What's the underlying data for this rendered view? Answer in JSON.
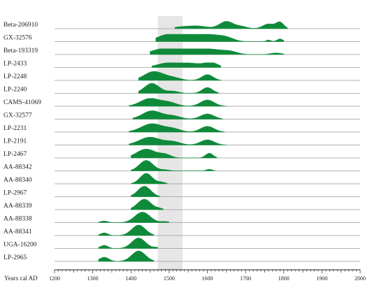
{
  "chart_data": {
    "type": "area",
    "title": "",
    "xlabel": "Years cal AD",
    "ylabel": "",
    "xlim": [
      1200,
      2000
    ],
    "x_ticks": [
      1200,
      1300,
      1400,
      1500,
      1600,
      1700,
      1800,
      1900,
      2000
    ],
    "x_tick_labels": [
      "1200",
      "1300",
      "1400",
      "1500",
      "1600",
      "1700",
      "1800",
      "1900",
      "2000"
    ],
    "highlight_band": [
      1470,
      1535
    ],
    "colors": {
      "fill": "#0f8a3a",
      "band": "#e6e6e6",
      "axis": "#231f20",
      "rule": "#999999"
    },
    "series": [
      {
        "name": "Beta-206910",
        "peaks": [
          {
            "x": 1530,
            "w": 22,
            "h": 0.15
          },
          {
            "x": 1575,
            "w": 25,
            "h": 0.25
          },
          {
            "x": 1650,
            "w": 18,
            "h": 0.7
          },
          {
            "x": 1690,
            "w": 15,
            "h": 0.2
          },
          {
            "x": 1760,
            "w": 15,
            "h": 0.45
          },
          {
            "x": 1790,
            "w": 10,
            "h": 0.6
          }
        ],
        "range": [
          1515,
          1810
        ]
      },
      {
        "name": "GX-32576",
        "peaks": [
          {
            "x": 1500,
            "w": 30,
            "h": 0.7
          },
          {
            "x": 1560,
            "w": 25,
            "h": 0.65
          },
          {
            "x": 1610,
            "w": 25,
            "h": 0.55
          },
          {
            "x": 1650,
            "w": 20,
            "h": 0.35
          },
          {
            "x": 1760,
            "w": 6,
            "h": 0.15
          },
          {
            "x": 1790,
            "w": 8,
            "h": 0.25
          }
        ],
        "range": [
          1465,
          1800
        ]
      },
      {
        "name": "Beta-193319",
        "peaks": [
          {
            "x": 1480,
            "w": 30,
            "h": 0.45
          },
          {
            "x": 1540,
            "w": 35,
            "h": 0.55
          },
          {
            "x": 1610,
            "w": 30,
            "h": 0.45
          },
          {
            "x": 1660,
            "w": 20,
            "h": 0.25
          },
          {
            "x": 1780,
            "w": 15,
            "h": 0.15
          }
        ],
        "range": [
          1450,
          1800
        ]
      },
      {
        "name": "LP-2433",
        "peaks": [
          {
            "x": 1500,
            "w": 30,
            "h": 0.45
          },
          {
            "x": 1560,
            "w": 25,
            "h": 0.35
          },
          {
            "x": 1610,
            "w": 18,
            "h": 0.45
          }
        ],
        "range": [
          1455,
          1635
        ]
      },
      {
        "name": "LP-2248",
        "peaks": [
          {
            "x": 1460,
            "w": 25,
            "h": 0.85
          },
          {
            "x": 1510,
            "w": 20,
            "h": 0.25
          },
          {
            "x": 1600,
            "w": 15,
            "h": 0.55
          }
        ],
        "range": [
          1420,
          1635
        ]
      },
      {
        "name": "LP-2240",
        "peaks": [
          {
            "x": 1455,
            "w": 20,
            "h": 0.95
          },
          {
            "x": 1510,
            "w": 15,
            "h": 0.2
          },
          {
            "x": 1600,
            "w": 14,
            "h": 0.55
          }
        ],
        "range": [
          1420,
          1630
        ]
      },
      {
        "name": "CAMS-41069",
        "peaks": [
          {
            "x": 1450,
            "w": 25,
            "h": 0.75
          },
          {
            "x": 1500,
            "w": 20,
            "h": 0.35
          },
          {
            "x": 1600,
            "w": 18,
            "h": 0.6
          }
        ],
        "range": [
          1395,
          1650
        ]
      },
      {
        "name": "GX-32577",
        "peaks": [
          {
            "x": 1455,
            "w": 25,
            "h": 0.8
          },
          {
            "x": 1510,
            "w": 20,
            "h": 0.3
          },
          {
            "x": 1600,
            "w": 18,
            "h": 0.5
          }
        ],
        "range": [
          1405,
          1640
        ]
      },
      {
        "name": "LP-2231",
        "peaks": [
          {
            "x": 1455,
            "w": 28,
            "h": 0.8
          },
          {
            "x": 1510,
            "w": 20,
            "h": 0.3
          },
          {
            "x": 1600,
            "w": 18,
            "h": 0.55
          }
        ],
        "range": [
          1395,
          1645
        ]
      },
      {
        "name": "LP-2191",
        "peaks": [
          {
            "x": 1450,
            "w": 28,
            "h": 0.75
          },
          {
            "x": 1510,
            "w": 20,
            "h": 0.3
          },
          {
            "x": 1600,
            "w": 18,
            "h": 0.5
          }
        ],
        "range": [
          1395,
          1650
        ]
      },
      {
        "name": "LP-2467",
        "peaks": [
          {
            "x": 1440,
            "w": 25,
            "h": 0.85
          },
          {
            "x": 1490,
            "w": 15,
            "h": 0.3
          },
          {
            "x": 1605,
            "w": 10,
            "h": 0.45
          }
        ],
        "range": [
          1400,
          1625
        ]
      },
      {
        "name": "AA-88342",
        "peaks": [
          {
            "x": 1440,
            "w": 18,
            "h": 1.0
          },
          {
            "x": 1490,
            "w": 12,
            "h": 0.1
          },
          {
            "x": 1605,
            "w": 8,
            "h": 0.15
          }
        ],
        "range": [
          1400,
          1620
        ]
      },
      {
        "name": "AA-88340",
        "peaks": [
          {
            "x": 1440,
            "w": 16,
            "h": 1.0
          },
          {
            "x": 1480,
            "w": 10,
            "h": 0.15
          }
        ],
        "range": [
          1400,
          1495
        ]
      },
      {
        "name": "LP-2967",
        "peaks": [
          {
            "x": 1435,
            "w": 17,
            "h": 1.0
          }
        ],
        "range": [
          1400,
          1475
        ]
      },
      {
        "name": "AA-88339",
        "peaks": [
          {
            "x": 1435,
            "w": 18,
            "h": 1.0
          },
          {
            "x": 1475,
            "w": 8,
            "h": 0.1
          }
        ],
        "range": [
          1400,
          1485
        ]
      },
      {
        "name": "AA-88338",
        "peaks": [
          {
            "x": 1330,
            "w": 10,
            "h": 0.15
          },
          {
            "x": 1430,
            "w": 20,
            "h": 1.0
          },
          {
            "x": 1490,
            "w": 10,
            "h": 0.1
          }
        ],
        "range": [
          1315,
          1500
        ]
      },
      {
        "name": "AA-88341",
        "peaks": [
          {
            "x": 1330,
            "w": 10,
            "h": 0.25
          },
          {
            "x": 1420,
            "w": 18,
            "h": 1.0
          }
        ],
        "range": [
          1315,
          1460
        ]
      },
      {
        "name": "UGA-16200",
        "peaks": [
          {
            "x": 1330,
            "w": 10,
            "h": 0.3
          },
          {
            "x": 1420,
            "w": 18,
            "h": 1.0
          },
          {
            "x": 1470,
            "w": 10,
            "h": 0.1
          }
        ],
        "range": [
          1315,
          1470
        ]
      },
      {
        "name": "LP-2965",
        "peaks": [
          {
            "x": 1330,
            "w": 12,
            "h": 0.4
          },
          {
            "x": 1420,
            "w": 18,
            "h": 1.0
          }
        ],
        "range": [
          1315,
          1460
        ]
      }
    ]
  }
}
